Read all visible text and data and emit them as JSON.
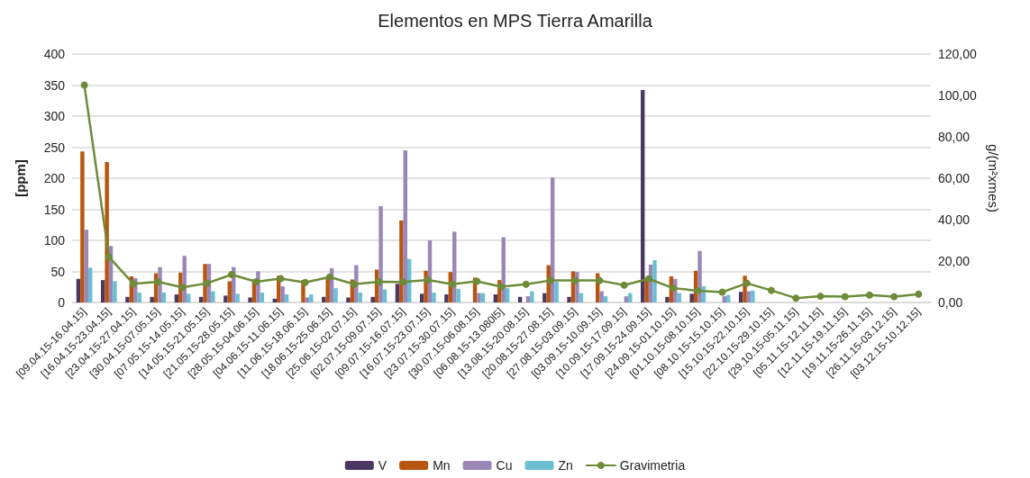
{
  "chart_data": {
    "type": "bar",
    "title": "Elementos en MPS Tierra Amarilla",
    "ylabel": "[ppm]",
    "y2label": "g/(m²xmes)",
    "categories": [
      "[09.04.15-16.04.15]",
      "[16.04.15-23.04.15]",
      "[23.04.15-27.04.15]",
      "[30.04.15-07.05.15]",
      "[07.05.15-14.05.15]",
      "[14.05.15-21.05.15]",
      "[21.05.15-28.05.15]",
      "[28.05.15-04.06.15]",
      "[04.06.15-11.06.15]",
      "[11.06.15-18.06.15]",
      "[18.06.15-25.06.15]",
      "[25.06.15-02.07.15]",
      "[02.07.15-09.07.15]",
      "[09.07.15-16.07.15]",
      "[16.07.15-23.07.15]",
      "[23.07.15-30.07.15]",
      "[30.07.15-06.08.15]",
      "[06.08.15-13.080l5]",
      "[13.08.15-20.08.15]",
      "[20.08.15-27.08.15]",
      "[27.08.15-03.09.15]",
      "[03.09.15-10.09.15]",
      "[10.09.15-17.09.15]",
      "[17.09.15-24.09.15]",
      "[24.09.15-01.10.15]",
      "[01.10.15-08.10.15]",
      "[08.10.15-15.10.15]",
      "[15.10.15-22.10.15]",
      "[22.10.15-29.10.15]",
      "[29.10.15-05.11.15]",
      "[05.11.15-12.11.15]",
      "[12.11.15-19.11.15]",
      "[19.11.15-26.11.15]",
      "[26.11.15-03.12.15]",
      "[03.12.15-10.12.15]"
    ],
    "series": [
      {
        "name": "V",
        "color": "#4a3862",
        "values": [
          38,
          36,
          9,
          9,
          13,
          9,
          11,
          8,
          6,
          null,
          9,
          8,
          9,
          30,
          14,
          13,
          null,
          13,
          9,
          15,
          9,
          null,
          null,
          342,
          9,
          14,
          null,
          17,
          null,
          null,
          null,
          null,
          null,
          null,
          null
        ]
      },
      {
        "name": "Mn",
        "color": "#b8560f",
        "values": [
          243,
          226,
          42,
          47,
          48,
          62,
          34,
          37,
          43,
          36,
          41,
          37,
          53,
          132,
          51,
          49,
          40,
          36,
          null,
          60,
          50,
          47,
          null,
          40,
          42,
          51,
          null,
          43,
          null,
          null,
          null,
          null,
          null,
          null,
          null
        ]
      },
      {
        "name": "Cu",
        "color": "#9b86b8",
        "values": [
          117,
          91,
          39,
          57,
          75,
          62,
          57,
          50,
          26,
          8,
          55,
          60,
          155,
          245,
          100,
          114,
          15,
          105,
          10,
          201,
          49,
          18,
          10,
          61,
          38,
          83,
          10,
          18,
          null,
          null,
          null,
          null,
          null,
          null,
          null
        ]
      },
      {
        "name": "Zn",
        "color": "#6bbfd1",
        "values": [
          56,
          34,
          16,
          16,
          14,
          18,
          14,
          16,
          13,
          13,
          23,
          16,
          21,
          70,
          16,
          22,
          15,
          23,
          18,
          33,
          15,
          10,
          15,
          68,
          15,
          26,
          12,
          19,
          null,
          null,
          null,
          null,
          null,
          null,
          null
        ]
      },
      {
        "name": "Gravimetria",
        "type": "line",
        "axis": "y2",
        "color": "#6e8b3a",
        "marker": "circle",
        "values": [
          105,
          22,
          9,
          10,
          7.3,
          9.3,
          13.5,
          10,
          11.5,
          9.7,
          12.3,
          8.8,
          10,
          9.9,
          10.9,
          8.8,
          10.2,
          7.6,
          8.8,
          10.6,
          10.6,
          10.6,
          8.4,
          11.4,
          6.9,
          5.7,
          5,
          9.3,
          5.8,
          2.1,
          3,
          2.8,
          3.6,
          2.8,
          4
        ]
      }
    ],
    "ylim": [
      0,
      400
    ],
    "yticks": [
      0,
      50,
      100,
      150,
      200,
      250,
      300,
      350,
      400
    ],
    "y2lim": [
      0,
      120
    ],
    "y2ticks": [
      {
        "value": 0,
        "label": "0,00"
      },
      {
        "value": 20,
        "label": "20,00"
      },
      {
        "value": 40,
        "label": "40,00"
      },
      {
        "value": 60,
        "label": "60,00"
      },
      {
        "value": 80,
        "label": "80,00"
      },
      {
        "value": 100,
        "label": "100,00"
      },
      {
        "value": 120,
        "label": "120,00"
      }
    ],
    "grid": "y",
    "legend": "bottom"
  }
}
